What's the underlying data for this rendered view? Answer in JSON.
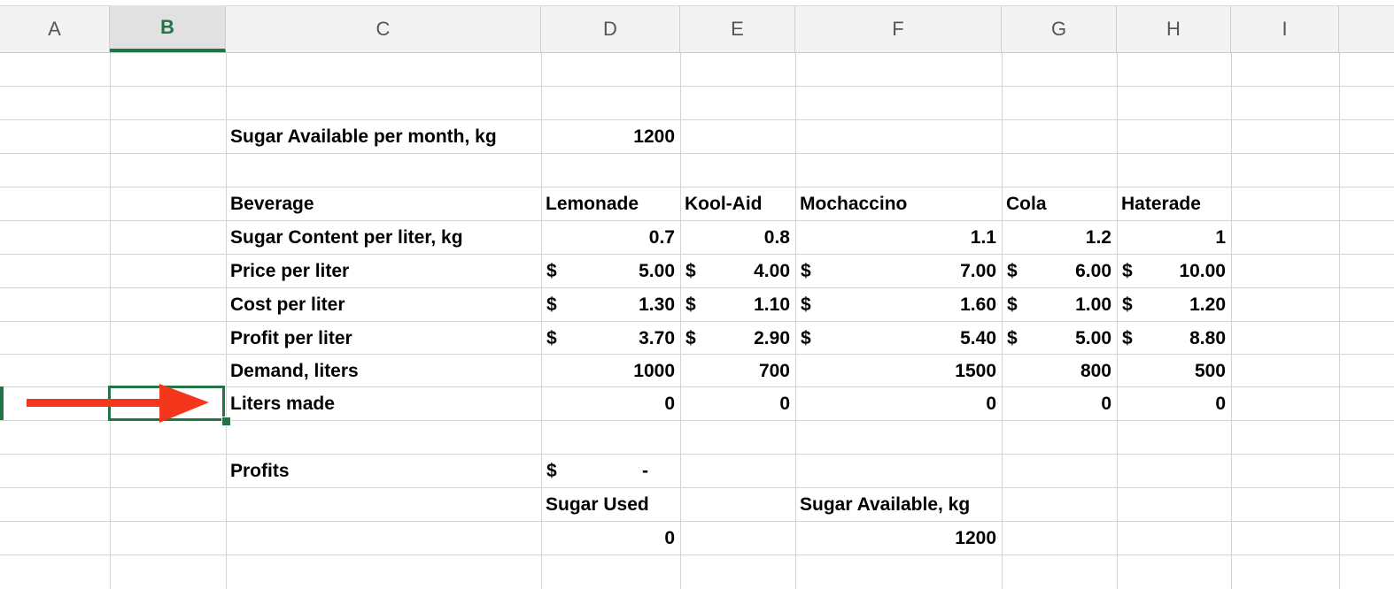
{
  "columns": [
    "A",
    "B",
    "C",
    "D",
    "E",
    "F",
    "G",
    "H",
    "I"
  ],
  "active_column": "B",
  "cells": {
    "sugar_available_label": "Sugar Available per month, kg",
    "sugar_available_value": "1200",
    "beverage_label": "Beverage",
    "beverages": [
      "Lemonade",
      "Kool-Aid",
      "Mochaccino",
      "Cola",
      "Haterade"
    ],
    "sugar_content_label": "Sugar Content per liter, kg",
    "sugar_content": [
      "0.7",
      "0.8",
      "1.1",
      "1.2",
      "1"
    ],
    "price_label": "Price per liter",
    "price": [
      "5.00",
      "4.00",
      "7.00",
      "6.00",
      "10.00"
    ],
    "cost_label": "Cost per liter",
    "cost": [
      "1.30",
      "1.10",
      "1.60",
      "1.00",
      "1.20"
    ],
    "profit_label": "Profit per liter",
    "profit": [
      "3.70",
      "2.90",
      "5.40",
      "5.00",
      "8.80"
    ],
    "demand_label": "Demand, liters",
    "demand": [
      "1000",
      "700",
      "1500",
      "800",
      "500"
    ],
    "liters_made_label": "Liters made",
    "liters_made": [
      "0",
      "0",
      "0",
      "0",
      "0"
    ],
    "profits_label": "Profits",
    "profits_value": "-",
    "currency_symbol": "$",
    "sugar_used_label": "Sugar Used",
    "sugar_used_value": "0",
    "sugar_available_kg_label": "Sugar Available, kg",
    "sugar_available_kg_value": "1200"
  },
  "selected_cell": "B11",
  "colors": {
    "accent": "#227447",
    "arrow": "#f4361c"
  }
}
